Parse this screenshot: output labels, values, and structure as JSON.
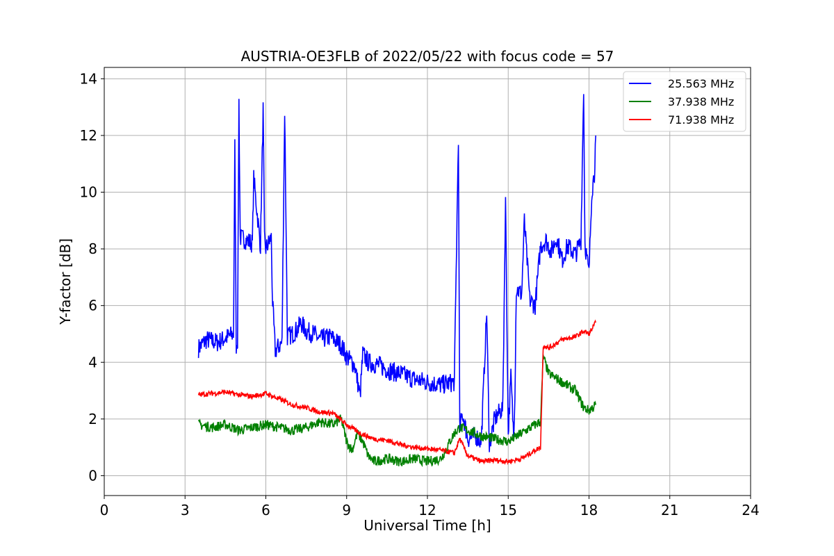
{
  "chart_data": {
    "type": "line",
    "title": "AUSTRIA-OE3FLB of 2022/05/22 with focus code = 57",
    "xlabel": "Universal Time [h]",
    "ylabel": "Y-factor [dB]",
    "xlim": [
      0,
      24
    ],
    "ylim": [
      -0.7,
      14.4
    ],
    "xticks": [
      0,
      3,
      6,
      9,
      12,
      15,
      18,
      21,
      24
    ],
    "yticks": [
      0,
      2,
      4,
      6,
      8,
      10,
      12,
      14
    ],
    "grid": true,
    "legend_position": "top-right",
    "series": [
      {
        "name": "25.563 MHz",
        "color": "#0000ff",
        "x": [
          3.5,
          3.8,
          4.2,
          4.6,
          4.8,
          4.85,
          4.9,
          4.95,
          5.0,
          5.05,
          5.3,
          5.5,
          5.55,
          5.8,
          5.9,
          5.95,
          6.0,
          6.2,
          6.25,
          6.35,
          6.6,
          6.7,
          6.8,
          7.0,
          7.2,
          7.3,
          7.5,
          7.8,
          8.0,
          8.4,
          8.8,
          9.0,
          9.3,
          9.5,
          9.6,
          9.8,
          10.2,
          10.6,
          11.0,
          11.5,
          12.0,
          12.5,
          13.0,
          13.15,
          13.2,
          13.3,
          13.5,
          13.8,
          14.0,
          14.2,
          14.3,
          14.5,
          14.8,
          14.9,
          15.0,
          15.1,
          15.2,
          15.25,
          15.3,
          15.5,
          15.6,
          15.8,
          16.0,
          16.2,
          16.4,
          16.6,
          16.8,
          17.0,
          17.2,
          17.5,
          17.7,
          17.8,
          17.85,
          18.0,
          18.1,
          18.2,
          18.25
        ],
        "y": [
          4.5,
          4.8,
          4.7,
          4.9,
          5.0,
          11.6,
          4.6,
          4.8,
          13.2,
          8.4,
          8.3,
          8.2,
          10.5,
          8.1,
          12.9,
          8.3,
          8.0,
          8.4,
          6.1,
          4.4,
          4.7,
          12.9,
          4.9,
          5.0,
          5.2,
          5.4,
          5.1,
          5.0,
          4.8,
          4.9,
          4.6,
          4.2,
          3.9,
          2.8,
          4.3,
          4.0,
          3.9,
          3.7,
          3.6,
          3.4,
          3.3,
          3.2,
          3.3,
          12.0,
          1.6,
          2.2,
          1.3,
          1.4,
          1.2,
          5.8,
          1.1,
          2.0,
          2.4,
          9.8,
          1.5,
          3.5,
          1.4,
          3.0,
          6.6,
          6.4,
          9.0,
          6.2,
          6.0,
          8.1,
          8.3,
          7.9,
          8.4,
          7.6,
          8.1,
          7.8,
          8.3,
          13.7,
          8.2,
          7.1,
          10.0,
          10.7,
          12.0
        ]
      },
      {
        "name": "37.938 MHz",
        "color": "#008000",
        "x": [
          3.5,
          4.0,
          4.5,
          5.0,
          5.5,
          6.0,
          6.5,
          7.0,
          7.5,
          8.0,
          8.5,
          8.8,
          9.0,
          9.2,
          9.4,
          9.6,
          9.8,
          10.0,
          10.5,
          11.0,
          11.5,
          12.0,
          12.5,
          13.0,
          13.2,
          13.5,
          14.0,
          14.5,
          15.0,
          15.5,
          16.0,
          16.2,
          16.3,
          16.5,
          17.0,
          17.5,
          17.8,
          18.0,
          18.25
        ],
        "y": [
          1.8,
          1.7,
          1.8,
          1.6,
          1.7,
          1.8,
          1.7,
          1.6,
          1.7,
          1.9,
          1.8,
          2.0,
          1.2,
          0.9,
          1.5,
          1.2,
          0.7,
          0.5,
          0.6,
          0.5,
          0.6,
          0.5,
          0.6,
          1.5,
          1.7,
          1.6,
          1.4,
          1.3,
          1.2,
          1.5,
          1.8,
          1.9,
          4.2,
          3.6,
          3.3,
          3.0,
          2.4,
          2.3,
          2.5
        ]
      },
      {
        "name": "71.938 MHz",
        "color": "#ff0000",
        "x": [
          3.5,
          4.0,
          4.5,
          5.0,
          5.5,
          6.0,
          6.5,
          7.0,
          7.5,
          8.0,
          8.5,
          9.0,
          9.5,
          10.0,
          10.5,
          11.0,
          11.5,
          12.0,
          12.5,
          13.0,
          13.2,
          13.5,
          14.0,
          14.5,
          15.0,
          15.5,
          16.0,
          16.2,
          16.3,
          16.5,
          17.0,
          17.5,
          17.8,
          18.0,
          18.25
        ],
        "y": [
          2.85,
          2.9,
          2.95,
          2.85,
          2.8,
          2.9,
          2.7,
          2.5,
          2.4,
          2.25,
          2.2,
          1.8,
          1.5,
          1.3,
          1.25,
          1.1,
          1.0,
          0.95,
          0.9,
          0.8,
          1.3,
          0.7,
          0.5,
          0.55,
          0.5,
          0.6,
          0.9,
          1.0,
          4.6,
          4.5,
          4.8,
          4.9,
          5.1,
          5.0,
          5.4
        ]
      }
    ]
  }
}
